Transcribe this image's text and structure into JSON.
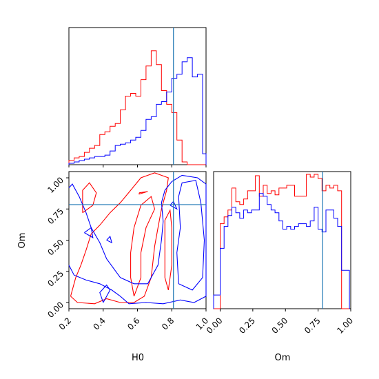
{
  "chart_data": {
    "type": "corner",
    "truth": {
      "H0": 0.81,
      "Om": 0.785
    },
    "colors": {
      "red": "#ff0000",
      "blue": "#0000ff",
      "truth": "#1f77b4"
    },
    "params": [
      "H0",
      "Om"
    ],
    "h0_hist": {
      "xlim": [
        0.2,
        1.0
      ],
      "edges": [
        0.2,
        0.23,
        0.26,
        0.29,
        0.32,
        0.35,
        0.38,
        0.41,
        0.44,
        0.47,
        0.5,
        0.53,
        0.56,
        0.59,
        0.62,
        0.65,
        0.68,
        0.71,
        0.74,
        0.77,
        0.8,
        0.83,
        0.86,
        0.89,
        0.92,
        0.95,
        0.98,
        1.0
      ],
      "red": [
        0.03,
        0.05,
        0.06,
        0.09,
        0.12,
        0.14,
        0.22,
        0.24,
        0.28,
        0.3,
        0.4,
        0.5,
        0.52,
        0.5,
        0.62,
        0.72,
        0.83,
        0.73,
        0.54,
        0.44,
        0.38,
        0.18,
        0.02,
        0.0,
        0.0,
        0.0,
        0.0
      ],
      "blue": [
        0.01,
        0.02,
        0.03,
        0.04,
        0.05,
        0.06,
        0.06,
        0.07,
        0.1,
        0.14,
        0.15,
        0.16,
        0.18,
        0.2,
        0.25,
        0.33,
        0.35,
        0.44,
        0.46,
        0.53,
        0.63,
        0.66,
        0.75,
        0.78,
        0.64,
        0.66,
        0.08
      ]
    },
    "om_hist": {
      "xlim": [
        -0.05,
        1.0
      ],
      "edges": [
        -0.05,
        0.0,
        0.03,
        0.06,
        0.09,
        0.12,
        0.15,
        0.18,
        0.21,
        0.24,
        0.27,
        0.3,
        0.33,
        0.36,
        0.39,
        0.42,
        0.45,
        0.48,
        0.51,
        0.54,
        0.57,
        0.6,
        0.63,
        0.66,
        0.69,
        0.72,
        0.75,
        0.78,
        0.81,
        0.84,
        0.87,
        0.9,
        0.93,
        0.96,
        0.99
      ],
      "red": [
        0.0,
        0.62,
        0.67,
        0.72,
        0.88,
        0.78,
        0.76,
        0.8,
        0.86,
        0.86,
        0.97,
        0.82,
        0.9,
        0.84,
        0.86,
        0.83,
        0.88,
        0.88,
        0.9,
        0.9,
        0.82,
        0.82,
        0.82,
        0.98,
        0.96,
        0.98,
        0.95,
        0.86,
        0.9,
        0.88,
        0.9,
        0.86,
        0.0,
        0.0
      ],
      "blue": [
        0.1,
        0.44,
        0.6,
        0.68,
        0.74,
        0.7,
        0.66,
        0.72,
        0.7,
        0.72,
        0.72,
        0.84,
        0.82,
        0.76,
        0.72,
        0.7,
        0.64,
        0.58,
        0.6,
        0.58,
        0.6,
        0.62,
        0.62,
        0.6,
        0.64,
        0.74,
        0.58,
        0.56,
        0.72,
        0.72,
        0.66,
        0.6,
        0.28,
        0.28
      ]
    },
    "joint": {
      "xlim": [
        0.2,
        1.0
      ],
      "ylim": [
        -0.05,
        1.05
      ],
      "contours": [
        {
          "color": "red",
          "points": [
            [
              0.21,
              0.05
            ],
            [
              0.25,
              0.0
            ],
            [
              0.35,
              -0.01
            ],
            [
              0.42,
              0.03
            ],
            [
              0.5,
              0.0
            ],
            [
              0.58,
              0.0
            ],
            [
              0.64,
              0.05
            ],
            [
              0.68,
              0.2
            ],
            [
              0.7,
              0.45
            ],
            [
              0.72,
              0.6
            ],
            [
              0.74,
              0.75
            ],
            [
              0.77,
              0.9
            ],
            [
              0.78,
              1.0
            ],
            [
              0.7,
              1.04
            ],
            [
              0.62,
              1.0
            ],
            [
              0.56,
              0.9
            ],
            [
              0.5,
              0.8
            ],
            [
              0.44,
              0.72
            ],
            [
              0.38,
              0.62
            ],
            [
              0.33,
              0.55
            ],
            [
              0.3,
              0.42
            ],
            [
              0.27,
              0.3
            ],
            [
              0.24,
              0.2
            ],
            [
              0.21,
              0.05
            ]
          ]
        },
        {
          "color": "red",
          "points": [
            [
              0.58,
              0.05
            ],
            [
              0.62,
              0.2
            ],
            [
              0.62,
              0.4
            ],
            [
              0.65,
              0.6
            ],
            [
              0.7,
              0.75
            ],
            [
              0.68,
              0.85
            ],
            [
              0.62,
              0.78
            ],
            [
              0.58,
              0.6
            ],
            [
              0.56,
              0.4
            ],
            [
              0.56,
              0.2
            ],
            [
              0.58,
              0.05
            ]
          ]
        },
        {
          "color": "red",
          "points": [
            [
              0.28,
              0.72
            ],
            [
              0.34,
              0.78
            ],
            [
              0.36,
              0.88
            ],
            [
              0.32,
              0.96
            ],
            [
              0.28,
              0.9
            ],
            [
              0.28,
              0.72
            ]
          ]
        },
        {
          "color": "red",
          "points": [
            [
              0.78,
              0.1
            ],
            [
              0.8,
              0.3
            ],
            [
              0.8,
              0.6
            ],
            [
              0.79,
              0.74
            ],
            [
              0.76,
              0.66
            ],
            [
              0.76,
              0.4
            ],
            [
              0.76,
              0.2
            ],
            [
              0.78,
              0.1
            ]
          ]
        },
        {
          "color": "red",
          "points": [
            [
              0.61,
              0.88
            ],
            [
              0.66,
              0.89
            ],
            [
              0.61,
              0.87
            ],
            [
              0.61,
              0.88
            ]
          ]
        },
        {
          "color": "blue",
          "points": [
            [
              0.2,
              0.3
            ],
            [
              0.23,
              0.22
            ],
            [
              0.3,
              0.18
            ],
            [
              0.38,
              0.15
            ],
            [
              0.45,
              0.1
            ],
            [
              0.5,
              0.05
            ],
            [
              0.55,
              -0.01
            ],
            [
              0.65,
              0.0
            ],
            [
              0.75,
              -0.01
            ],
            [
              0.85,
              0.02
            ],
            [
              0.93,
              0.0
            ],
            [
              1.0,
              0.05
            ],
            [
              1.0,
              0.95
            ],
            [
              0.95,
              1.0
            ],
            [
              0.86,
              1.02
            ],
            [
              0.8,
              0.97
            ],
            [
              0.76,
              0.9
            ],
            [
              0.74,
              0.8
            ],
            [
              0.75,
              0.65
            ],
            [
              0.74,
              0.5
            ],
            [
              0.72,
              0.3
            ],
            [
              0.66,
              0.15
            ],
            [
              0.58,
              0.15
            ],
            [
              0.5,
              0.2
            ],
            [
              0.42,
              0.35
            ],
            [
              0.38,
              0.48
            ],
            [
              0.33,
              0.6
            ],
            [
              0.3,
              0.72
            ],
            [
              0.26,
              0.85
            ],
            [
              0.22,
              0.95
            ],
            [
              0.2,
              0.92
            ]
          ]
        },
        {
          "color": "blue",
          "points": [
            [
              0.84,
              0.15
            ],
            [
              0.92,
              0.1
            ],
            [
              0.98,
              0.2
            ],
            [
              0.99,
              0.5
            ],
            [
              0.97,
              0.8
            ],
            [
              0.94,
              0.98
            ],
            [
              0.86,
              0.96
            ],
            [
              0.84,
              0.85
            ],
            [
              0.85,
              0.6
            ],
            [
              0.83,
              0.4
            ],
            [
              0.84,
              0.15
            ]
          ]
        },
        {
          "color": "blue",
          "points": [
            [
              0.4,
              0.0
            ],
            [
              0.44,
              0.1
            ],
            [
              0.42,
              0.14
            ],
            [
              0.38,
              0.08
            ],
            [
              0.4,
              0.0
            ]
          ]
        },
        {
          "color": "blue",
          "points": [
            [
              0.29,
              0.56
            ],
            [
              0.34,
              0.52
            ],
            [
              0.33,
              0.6
            ],
            [
              0.29,
              0.56
            ]
          ]
        },
        {
          "color": "blue",
          "points": [
            [
              0.42,
              0.5
            ],
            [
              0.45,
              0.48
            ],
            [
              0.44,
              0.53
            ],
            [
              0.42,
              0.5
            ]
          ]
        },
        {
          "color": "blue",
          "points": [
            [
              0.79,
              0.78
            ],
            [
              0.83,
              0.75
            ],
            [
              0.81,
              0.81
            ],
            [
              0.79,
              0.78
            ]
          ]
        }
      ]
    },
    "h0_ticks": [
      "0.2",
      "0.4",
      "0.6",
      "0.8",
      "1.0"
    ],
    "h0_tick_values": [
      0.2,
      0.4,
      0.6,
      0.8,
      1.0
    ],
    "om_ticks": [
      "0.00",
      "0.25",
      "0.50",
      "0.75",
      "1.00"
    ],
    "om_tick_values": [
      0.0,
      0.25,
      0.5,
      0.75,
      1.0
    ],
    "xlabel_joint": "H0",
    "ylabel_joint": "Om",
    "xlabel_om": "Om"
  }
}
